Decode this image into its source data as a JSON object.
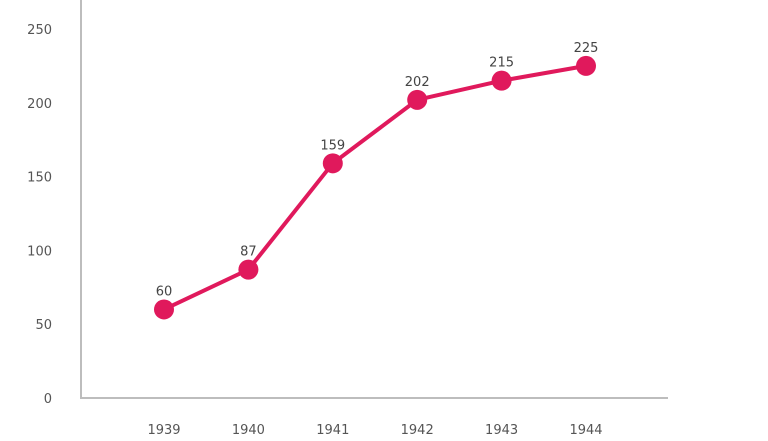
{
  "chart_data": {
    "type": "line",
    "title": "",
    "xlabel": "",
    "ylabel": "",
    "categories": [
      "1939",
      "1940",
      "1941",
      "1942",
      "1943",
      "1944"
    ],
    "series": [
      {
        "values": [
          60,
          87,
          159,
          202,
          215,
          225
        ],
        "color": "#e0195c"
      }
    ],
    "ylim": [
      0,
      250
    ],
    "yticks": [
      0,
      50,
      100,
      150,
      200,
      250
    ],
    "data_labels": [
      "60",
      "87",
      "159",
      "202",
      "215",
      "225"
    ],
    "grid": false,
    "legend": "none",
    "axis_color": "#bdbdbd",
    "text_color": "#555555"
  }
}
